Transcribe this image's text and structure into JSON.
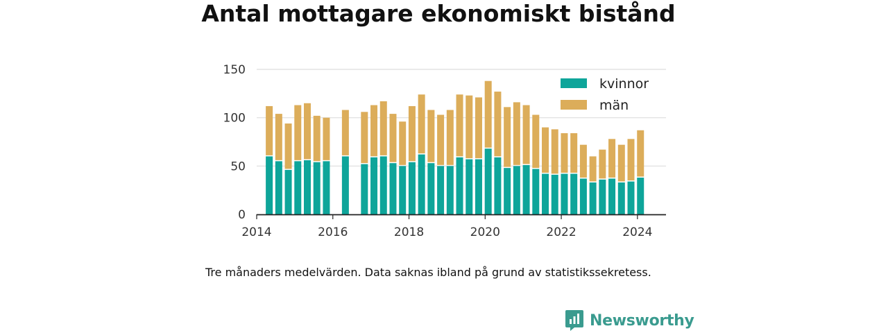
{
  "title": "Antal mottagare ekonomiskt bistånd",
  "note": "Tre månaders medelvärden. Data saknas ibland på grund av statistikssekretess.",
  "brand": {
    "name": "Newsworthy",
    "icon": "newsworthy-logo-icon"
  },
  "colors": {
    "kvinnor": "#0ea59a",
    "man": "#dcad5a",
    "grid": "#dddddd",
    "axis": "#222222"
  },
  "chart_data": {
    "type": "bar",
    "stacked": true,
    "title": "Antal mottagare ekonomiskt bistånd",
    "xlabel": "",
    "ylabel": "",
    "ylim": [
      0,
      150
    ],
    "yticks": [
      0,
      50,
      100,
      150
    ],
    "xlim": [
      2014.0,
      2024.75
    ],
    "xticks": [
      2014,
      2016,
      2018,
      2020,
      2022,
      2024
    ],
    "grid": true,
    "legend_position": "top-right",
    "x": [
      2014.33,
      2014.58,
      2014.83,
      2015.08,
      2015.33,
      2015.58,
      2015.83,
      2016.08,
      2016.33,
      2016.58,
      2016.83,
      2017.08,
      2017.33,
      2017.58,
      2017.83,
      2018.08,
      2018.33,
      2018.58,
      2018.83,
      2019.08,
      2019.33,
      2019.58,
      2019.83,
      2020.08,
      2020.33,
      2020.58,
      2020.83,
      2021.08,
      2021.33,
      2021.58,
      2021.83,
      2022.08,
      2022.33,
      2022.58,
      2022.83,
      2023.08,
      2023.33,
      2023.58,
      2023.83,
      2024.08
    ],
    "series": [
      {
        "name": "kvinnor",
        "values": [
          60,
          55,
          46,
          55,
          56,
          54,
          55,
          null,
          60,
          null,
          52,
          59,
          60,
          53,
          50,
          54,
          62,
          53,
          50,
          50,
          59,
          57,
          57,
          68,
          59,
          48,
          50,
          51,
          47,
          42,
          41,
          42,
          42,
          37,
          33,
          36,
          37,
          33,
          34,
          38
        ]
      },
      {
        "name": "män",
        "values": [
          52,
          49,
          48,
          58,
          59,
          48,
          45,
          null,
          48,
          null,
          54,
          54,
          57,
          51,
          46,
          58,
          62,
          55,
          53,
          58,
          65,
          66,
          64,
          70,
          68,
          63,
          66,
          62,
          56,
          48,
          47,
          42,
          42,
          35,
          27,
          31,
          41,
          39,
          44,
          49
        ]
      }
    ]
  }
}
